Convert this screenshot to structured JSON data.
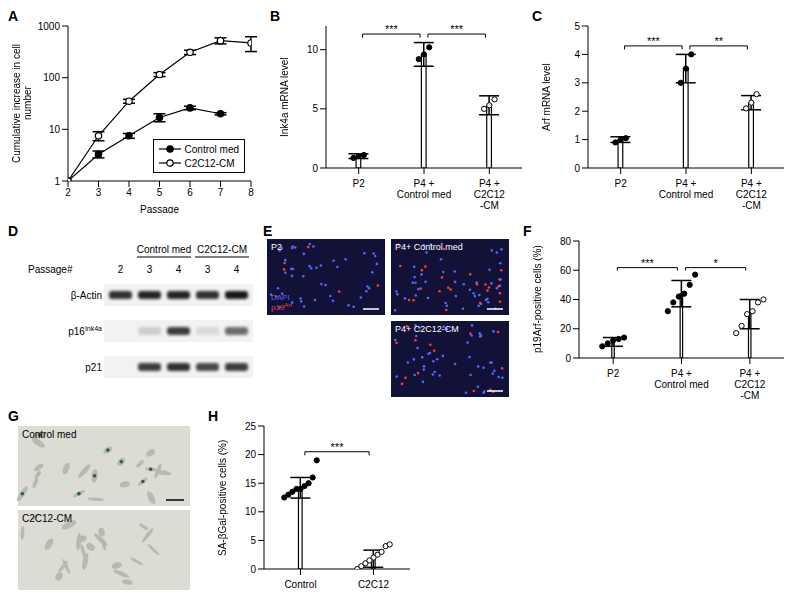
{
  "chart_data": [
    {
      "panel": "A",
      "type": "line",
      "x": [
        2,
        3,
        4,
        5,
        6,
        7,
        8
      ],
      "xlim": [
        2,
        8
      ],
      "xticks": [
        2,
        3,
        4,
        5,
        6,
        7,
        8
      ],
      "ylim": [
        1,
        1000
      ],
      "yticks": [
        1,
        10,
        100,
        1000
      ],
      "log": "y",
      "x_label": "Passage",
      "y_label": "Cumulative increase in cell number",
      "legend": "lower right",
      "series": [
        {
          "name": "Control med",
          "color": "#000000",
          "marker": "circle",
          "values": [
            1,
            3.3,
            7.5,
            17,
            26,
            20,
            null
          ],
          "errors": [
            0,
            0.5,
            0.8,
            3,
            2,
            1,
            0
          ]
        },
        {
          "name": "C2C12-CM",
          "color": "#000000",
          "marker": "circle_open",
          "values": [
            1,
            7.5,
            35,
            115,
            310,
            520,
            470
          ],
          "errors": [
            0,
            1.5,
            3,
            10,
            30,
            70,
            150
          ]
        }
      ]
    },
    {
      "panel": "B",
      "type": "bar",
      "categories": [
        "P2",
        "P4 + Control med",
        "P4 + C2C12 -CM"
      ],
      "values": [
        1,
        9.6,
        5.3
      ],
      "errors": [
        0.2,
        1,
        0.8
      ],
      "points": [
        [
          0.85,
          1.0,
          1.1
        ],
        [
          9.2,
          9.6,
          10.2
        ],
        [
          5.0,
          5.3,
          5.8
        ]
      ],
      "color": "#ffffff",
      "ylim": [
        0,
        12
      ],
      "yticks": [
        0,
        5,
        10
      ],
      "y_label": "Ink4a mRNA level",
      "annotations": [
        {
          "from": 0,
          "to": 1,
          "label": "***"
        },
        {
          "from": 1,
          "to": 2,
          "label": "***"
        }
      ]
    },
    {
      "panel": "C",
      "type": "bar",
      "categories": [
        "P2",
        "P4 + Control med",
        "P4 + C2C12 -CM"
      ],
      "values": [
        1,
        3.5,
        2.3
      ],
      "errors": [
        0.1,
        0.5,
        0.25
      ],
      "points": [
        [
          0.9,
          1.0,
          1.05
        ],
        [
          3.0,
          3.5,
          4.0
        ],
        [
          2.1,
          2.3,
          2.6
        ]
      ],
      "color": "#ffffff",
      "ylim": [
        0,
        5
      ],
      "yticks": [
        0,
        1,
        2,
        3,
        4,
        5
      ],
      "y_label": "Arf mRNA level",
      "annotations": [
        {
          "from": 0,
          "to": 1,
          "label": "***"
        },
        {
          "from": 1,
          "to": 2,
          "label": "**"
        }
      ]
    },
    {
      "panel": "F",
      "type": "bar",
      "categories": [
        "P2",
        "P4 + Control med",
        "P4 + C2C12 -CM"
      ],
      "values": [
        11,
        44,
        30
      ],
      "errors": [
        3,
        9,
        10
      ],
      "points": [
        [
          8,
          10,
          12,
          13,
          14
        ],
        [
          32,
          38,
          42,
          44,
          50,
          57
        ],
        [
          17,
          22,
          30,
          32,
          38,
          40
        ]
      ],
      "color": "#ffffff",
      "ylim": [
        0,
        80
      ],
      "yticks": [
        0,
        20,
        40,
        60,
        80
      ],
      "y_label": "p19Arf-positive cells (%)",
      "annotations": [
        {
          "from": 0,
          "to": 1,
          "label": "***"
        },
        {
          "from": 1,
          "to": 2,
          "label": "*"
        }
      ]
    },
    {
      "panel": "H",
      "type": "bar",
      "categories": [
        "Control",
        "C2C12"
      ],
      "values": [
        14.2,
        1.8
      ],
      "errors": [
        1.8,
        1.5
      ],
      "points": [
        [
          12.5,
          13,
          13.5,
          14,
          14,
          14.5,
          15,
          16,
          19
        ],
        [
          0,
          0.5,
          1,
          1.5,
          2,
          2.5,
          3,
          4,
          4.3
        ]
      ],
      "color": "#ffffff",
      "ylim": [
        0,
        25
      ],
      "yticks": [
        0,
        5,
        10,
        15,
        20,
        25
      ],
      "y_label": "SA-βGal-positive cells (%)",
      "annotations": [
        {
          "from": 0,
          "to": 1,
          "label": "***"
        }
      ]
    }
  ],
  "blot": {
    "panel": "D",
    "lane_label": "Passage#",
    "lanes": [
      2,
      3,
      4,
      3,
      4
    ],
    "groups": [
      {
        "label": "Control med",
        "count": 2
      },
      {
        "label": "C2C12-CM",
        "count": 2
      }
    ],
    "rows": [
      {
        "label": "β-Actin",
        "intensity": [
          0.8,
          0.85,
          0.85,
          0.8,
          0.9
        ]
      },
      {
        "label": "p16",
        "sup": "Ink4a",
        "intensity": [
          0,
          0.15,
          0.75,
          0.1,
          0.55
        ]
      },
      {
        "label": "p21",
        "intensity": [
          0,
          0.75,
          0.8,
          0.7,
          0.75
        ]
      }
    ]
  },
  "micrographs": {
    "panel": "E",
    "images": [
      {
        "label": "P2"
      },
      {
        "label": "P4+ Control med"
      },
      {
        "label": "P4+ C2C12-CM"
      }
    ],
    "channels": [
      {
        "label": "DAPI",
        "color": "#4a6cff"
      },
      {
        "label": "p19",
        "sup": "Arf",
        "color": "#ff3a3a"
      }
    ]
  },
  "stain_images": {
    "panel": "G",
    "images": [
      {
        "label": "Control med"
      },
      {
        "label": "C2C12-CM"
      }
    ]
  }
}
